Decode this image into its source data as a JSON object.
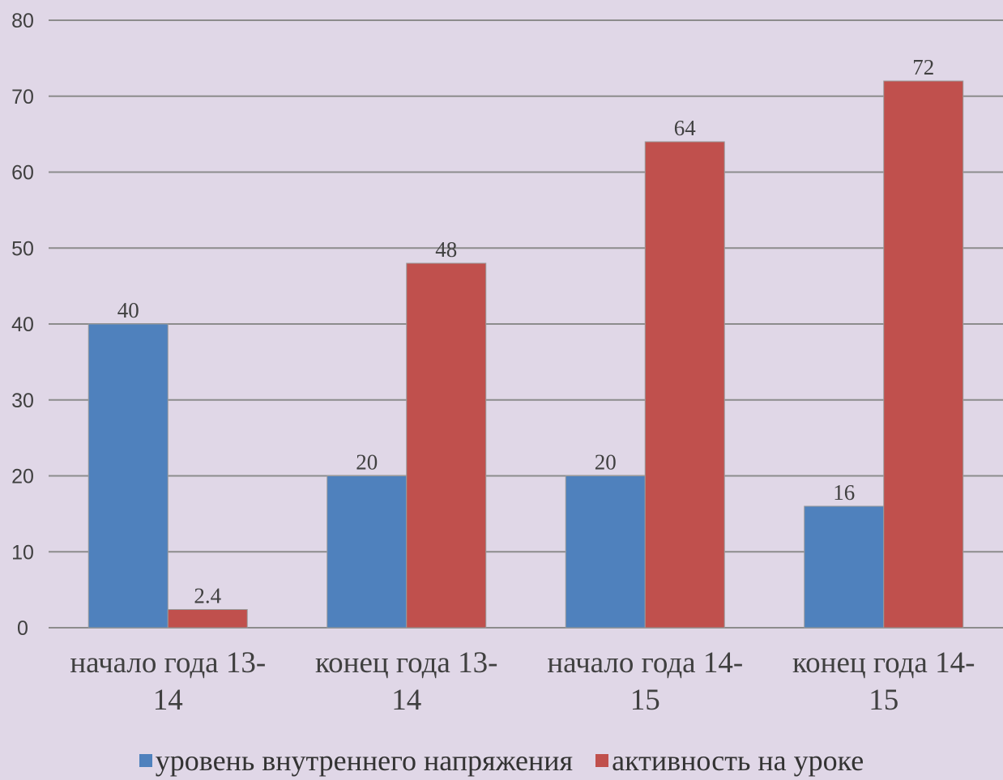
{
  "chart_data": {
    "type": "bar",
    "categories": [
      "начало года 13-14",
      "конец года 13-14",
      "начало года 14-15",
      "конец года 14-15"
    ],
    "category_lines": [
      [
        "начало года 13-",
        "14"
      ],
      [
        "конец года 13-",
        "14"
      ],
      [
        "начало года 14-",
        "15"
      ],
      [
        "конец года 14-",
        "15"
      ]
    ],
    "series": [
      {
        "name": "уровень внутреннего напряжения",
        "values": [
          40,
          20,
          20,
          16
        ],
        "value_labels": [
          "40",
          "20",
          "20",
          "16"
        ],
        "color": "#4f81bd"
      },
      {
        "name": "активность на уроке",
        "values": [
          2.4,
          48,
          64,
          72
        ],
        "value_labels": [
          "2.4",
          "48",
          "64",
          "72"
        ],
        "color": "#c0504d"
      }
    ],
    "yticks": [
      0,
      10,
      20,
      30,
      40,
      50,
      60,
      70,
      80
    ],
    "ylim": [
      0,
      80
    ],
    "grid": true,
    "legend_position": "bottom",
    "background": "#e0d7e7"
  },
  "legend": {
    "items": [
      {
        "label": "уровень внутреннего напряжения",
        "color": "#4f81bd"
      },
      {
        "label": "активность на уроке",
        "color": "#c0504d"
      }
    ]
  }
}
